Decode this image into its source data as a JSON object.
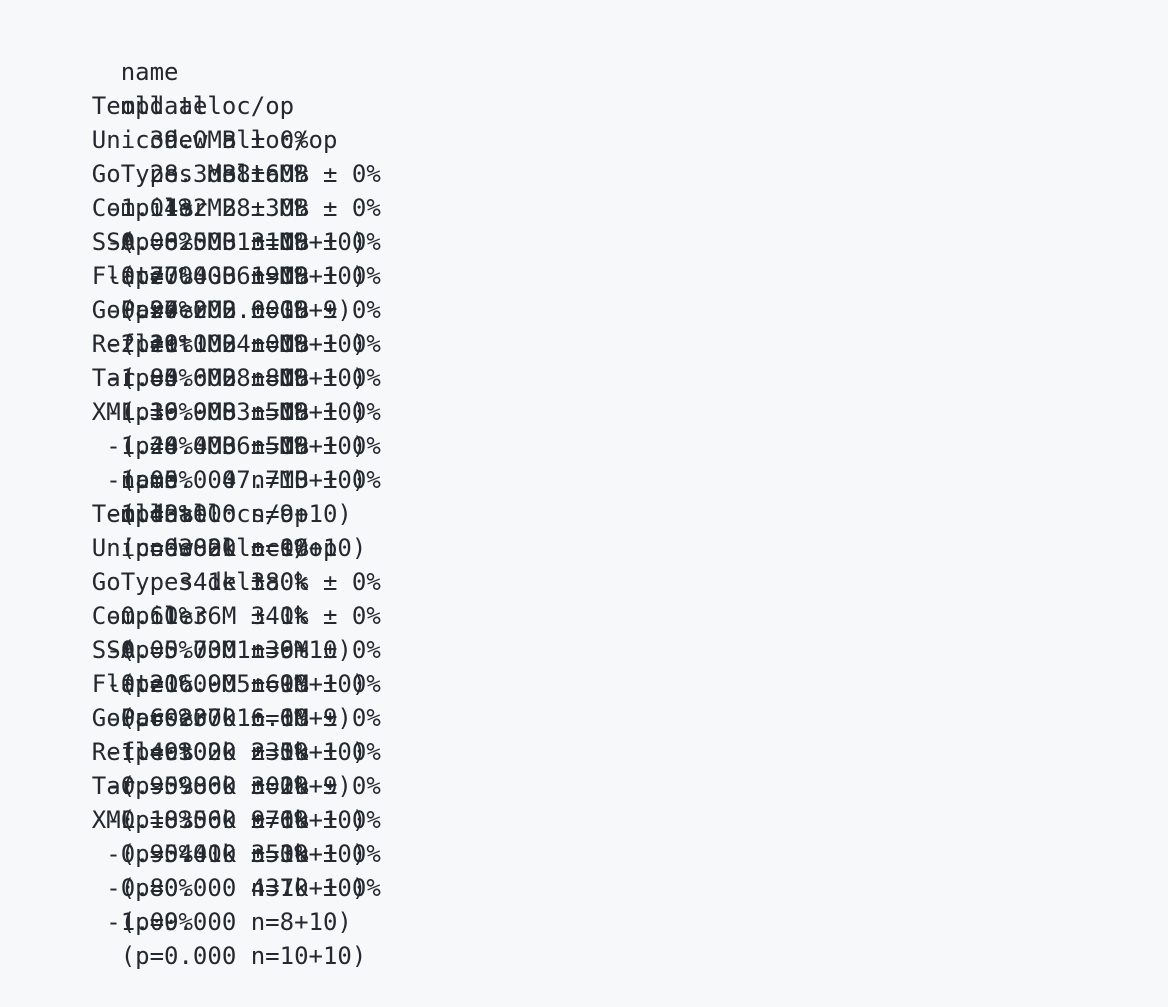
{
  "page": {
    "background_color": "#f6f8fa",
    "text_color": "#24292f"
  },
  "tables": [
    {
      "headers": {
        "name": "name",
        "old": "old alloc/op",
        "new": "new alloc/op",
        "delta": "delta"
      },
      "rows": [
        {
          "name": "Template",
          "old": "39.0MB ± 0%",
          "new": "38.6MB ± 0%",
          "delta": "-1.04%",
          "stats": "(p=0.000 n=10+10)"
        },
        {
          "name": "Unicode",
          "old": "28.3MB ± 0%",
          "new": "28.3MB ± 0%",
          "delta": "-0.08%",
          "stats": "(p=0.000 n=10+10)"
        },
        {
          "name": "GoTypes",
          "old": "132MB ± 0%",
          "new": "131MB ± 0%",
          "delta": "-0.77%",
          "stats": "(p=0.000 n=10+9)"
        },
        {
          "name": "Compiler",
          "old": "625MB ± 0%",
          "new": "619MB ± 0%",
          "delta": "-0.97%",
          "stats": "(p=0.000 n=10+10)"
        },
        {
          "name": "SSA",
          "old": "2.04GB ± 0%",
          "new": "2.00GB ± 0%",
          "delta": "-2.11%",
          "stats": "(p=0.000 n=10+10)"
        },
        {
          "name": "Flate",
          "old": "24.2MB ± 0%",
          "new": "24.0MB ± 0%",
          "delta": "-1.05%",
          "stats": "(p=0.000 n=10+10)"
        },
        {
          "name": "GoParser",
          "old": "29.1MB ± 0%",
          "new": "28.8MB ± 0%",
          "delta": "-1.19%",
          "stats": "(p=0.000 n=10+10)"
        },
        {
          "name": "Reflect",
          "old": "84.6MB ± 0%",
          "new": "83.5MB ± 0%",
          "delta": "-1.24%",
          "stats": "(p=0.000 n=10+10)"
        },
        {
          "name": "Tar",
          "old": "36.9MB ± 0%",
          "new": "36.5MB ± 0%",
          "delta": "-1.05%",
          "stats": "(p=0.000 n=9+10)"
        },
        {
          "name": "XML",
          "old": "48.4MB ± 0%",
          "new": "47.7MB ± 0%",
          "delta": "-1.43%",
          "stats": "(p=0.000 n=10+10)"
        }
      ]
    },
    {
      "headers": {
        "name": "name",
        "old": "old allocs/op",
        "new": "new allocs/op",
        "delta": "delta"
      },
      "rows": [
        {
          "name": "Template",
          "old": "382k ± 0%",
          "new": "380k ± 0%",
          "delta": "-0.60%",
          "stats": "(p=0.000 n=9+10)"
        },
        {
          "name": "Unicode",
          "old": "341k ± 0%",
          "new": "341k ± 0%",
          "delta": "-0.05%",
          "stats": "(p=0.000 n=10+10)"
        },
        {
          "name": "GoTypes",
          "old": "1.36M ± 0%",
          "new": "1.36M ± 0%",
          "delta": "-0.20%",
          "stats": "(p=0.000 n=10+9)"
        },
        {
          "name": "Compiler",
          "old": "5.73M ± 0%",
          "new": "5.69M ± 0%",
          "delta": "-0.60%",
          "stats": "(p=0.000 n=10+10)"
        },
        {
          "name": "SSA",
          "old": "16.9M ± 0%",
          "new": "16.6M ± 0%",
          "delta": "-1.49%",
          "stats": "(p=0.000 n=10+9)"
        },
        {
          "name": "Flate",
          "old": "237k ± 0%",
          "new": "235k ± 0%",
          "delta": "-0.95%",
          "stats": "(p=0.000 n=10+10)"
        },
        {
          "name": "GoParser",
          "old": "302k ± 0%",
          "new": "302k ± 0%",
          "delta": "-0.18%",
          "stats": "(p=0.000 n=10+10)"
        },
        {
          "name": "Reflect",
          "old": "986k ± 0%",
          "new": "976k ± 0%",
          "delta": "-0.95%",
          "stats": "(p=0.000 n=10+10)"
        },
        {
          "name": "Tar",
          "old": "356k ± 0%",
          "new": "353k ± 0%",
          "delta": "-0.80%",
          "stats": "(p=0.000 n=8+10)"
        },
        {
          "name": "XML",
          "old": "441k ± 0%",
          "new": "437k ± 0%",
          "delta": "-1.09%",
          "stats": "(p=0.000 n=10+10)"
        }
      ]
    }
  ]
}
